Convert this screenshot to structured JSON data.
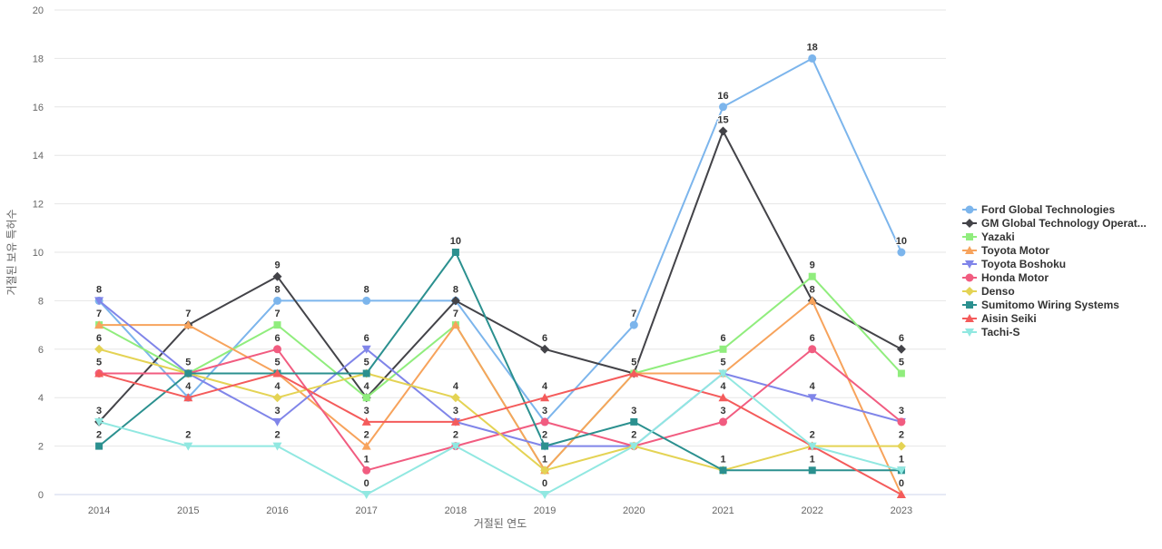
{
  "chart_data": {
    "type": "line",
    "title": "",
    "xlabel": "거절된 연도",
    "ylabel": "거절된 보유 특허수",
    "ylim": [
      0,
      20
    ],
    "ytick_step": 2,
    "grid": true,
    "legend_position": "right",
    "categories": [
      "2014",
      "2015",
      "2016",
      "2017",
      "2018",
      "2019",
      "2020",
      "2021",
      "2022",
      "2023"
    ],
    "series": [
      {
        "name": "Ford Global Technologies",
        "color": "#7cb5ec",
        "marker": "circle",
        "values": [
          8,
          4,
          8,
          8,
          8,
          3,
          7,
          16,
          18,
          10
        ]
      },
      {
        "name": "GM Global Technology Operat...",
        "color": "#434348",
        "marker": "diamond",
        "values": [
          3,
          7,
          9,
          4,
          8,
          6,
          5,
          15,
          8,
          6
        ]
      },
      {
        "name": "Yazaki",
        "color": "#90ed7d",
        "marker": "square",
        "values": [
          7,
          5,
          7,
          4,
          7,
          1,
          5,
          6,
          9,
          5
        ]
      },
      {
        "name": "Toyota Motor",
        "color": "#f7a35c",
        "marker": "triangle",
        "values": [
          7,
          7,
          5,
          2,
          7,
          1,
          5,
          5,
          8,
          0
        ]
      },
      {
        "name": "Toyota Boshoku",
        "color": "#8085e9",
        "marker": "triangle-down",
        "values": [
          8,
          5,
          3,
          6,
          3,
          2,
          2,
          5,
          4,
          3
        ]
      },
      {
        "name": "Honda Motor",
        "color": "#f15c80",
        "marker": "circle",
        "values": [
          5,
          5,
          6,
          1,
          2,
          3,
          2,
          3,
          6,
          3
        ]
      },
      {
        "name": "Denso",
        "color": "#e4d354",
        "marker": "diamond",
        "values": [
          6,
          5,
          4,
          5,
          4,
          1,
          2,
          1,
          2,
          2
        ]
      },
      {
        "name": "Sumitomo Wiring Systems",
        "color": "#2b908f",
        "marker": "square",
        "values": [
          2,
          5,
          5,
          5,
          10,
          2,
          3,
          1,
          1,
          1
        ]
      },
      {
        "name": "Aisin Seiki",
        "color": "#f45b5b",
        "marker": "triangle",
        "values": [
          5,
          4,
          5,
          3,
          3,
          4,
          5,
          4,
          2,
          0
        ]
      },
      {
        "name": "Tachi-S",
        "color": "#91e8e1",
        "marker": "triangle-down",
        "values": [
          3,
          2,
          2,
          0,
          2,
          0,
          2,
          5,
          2,
          1
        ]
      }
    ]
  }
}
